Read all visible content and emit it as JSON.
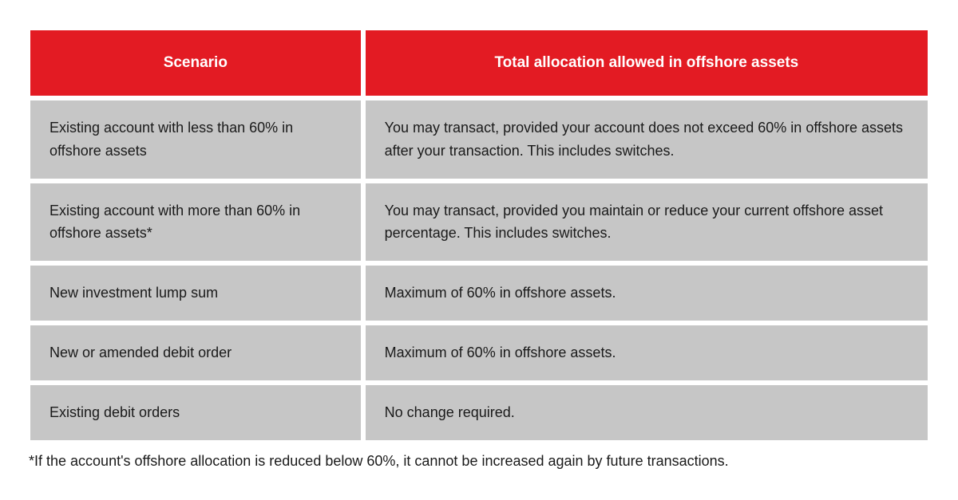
{
  "table": {
    "header_bg": "#e31b23",
    "header_text_color": "#ffffff",
    "header_fontsize": "19px",
    "cell_bg": "#c6c6c6",
    "cell_text_color": "#1a1a1a",
    "cell_fontsize": "18px",
    "columns": [
      "Scenario",
      "Total allocation allowed in offshore assets"
    ],
    "rows": [
      {
        "scenario": "Existing account with less than 60% in offshore assets",
        "allocation": "You may transact, provided your account does not exceed 60% in offshore assets after your transaction. This includes switches."
      },
      {
        "scenario": "Existing account with more than 60% in offshore assets*",
        "allocation": "You may transact, provided you maintain or reduce your current offshore asset percentage. This includes switches."
      },
      {
        "scenario": "New investment lump sum",
        "allocation": "Maximum of 60% in offshore assets."
      },
      {
        "scenario": "New or amended debit order",
        "allocation": "Maximum of 60% in offshore assets."
      },
      {
        "scenario": "Existing debit orders",
        "allocation": "No change required."
      }
    ]
  },
  "footnote": {
    "text": "*If the account's offshore allocation is reduced below 60%, it cannot be increased again by future transactions.",
    "fontsize": "18px",
    "color": "#1a1a1a"
  }
}
